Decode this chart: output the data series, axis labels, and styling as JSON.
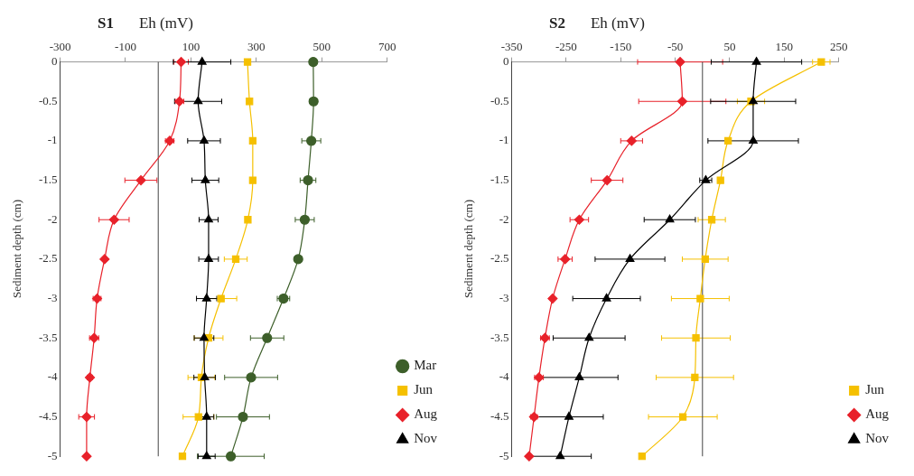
{
  "chart_data": [
    {
      "type": "line",
      "title": "S1",
      "xlabel": "Eh (mV)",
      "ylabel": "Sediment depth (cm)",
      "xlim": [
        -300,
        700
      ],
      "xticks": [
        -300,
        -100,
        100,
        300,
        500,
        700
      ],
      "ylim": [
        -5,
        0
      ],
      "yticks": [
        0,
        -0.5,
        -1,
        -1.5,
        -2,
        -2.5,
        -3,
        -3.5,
        -4,
        -4.5,
        -5
      ],
      "grid": false,
      "legend": "bottom right",
      "ref_lines": [
        {
          "axis": "x",
          "value": 0,
          "color": "#444444"
        }
      ],
      "series": [
        {
          "name": "Mar",
          "color": "#3d5f2a",
          "marker": "circle",
          "x": [
            474,
            475,
            468,
            458,
            448,
            428,
            383,
            333,
            284,
            259,
            222
          ],
          "values": [
            0,
            -0.5,
            -1,
            -1.5,
            -2,
            -2.5,
            -3,
            -3.5,
            -4,
            -4.5,
            -5
          ],
          "xerrors": [
            null,
            12,
            29,
            24,
            29,
            null,
            19,
            51,
            81,
            81,
            102
          ]
        },
        {
          "name": "Jun",
          "color": "#f5c000",
          "marker": "square",
          "x": [
            273,
            279,
            289,
            289,
            274,
            237,
            192,
            154,
            132,
            123,
            74
          ],
          "values": [
            0,
            -0.5,
            -1,
            -1.5,
            -2,
            -2.5,
            -3,
            -3.5,
            -4,
            -4.5,
            -5
          ],
          "xerrors": [
            null,
            null,
            null,
            null,
            null,
            35,
            48,
            44,
            41,
            47,
            null
          ]
        },
        {
          "name": "Aug",
          "color": "#e8212a",
          "marker": "diamond",
          "x": [
            70,
            65,
            35,
            -53,
            -135,
            -164,
            -187,
            -196,
            -209,
            -219,
            -219
          ],
          "values": [
            0,
            -0.5,
            -1,
            -1.5,
            -2,
            -2.5,
            -3,
            -3.5,
            -4,
            -4.5,
            -5
          ],
          "xerrors": [
            22,
            13,
            13,
            49,
            46,
            null,
            12,
            14,
            8,
            24,
            null
          ]
        },
        {
          "name": "Nov",
          "color": "#000000",
          "marker": "triangle",
          "x": [
            134,
            122,
            140,
            144,
            154,
            154,
            148,
            140,
            142,
            148,
            148
          ],
          "values": [
            0,
            -0.5,
            -1,
            -1.5,
            -2,
            -2.5,
            -3,
            -3.5,
            -4,
            -4.5,
            -5
          ],
          "xerrors": [
            88,
            72,
            50,
            41,
            29,
            30,
            31,
            30,
            33,
            22,
            26
          ]
        }
      ]
    },
    {
      "type": "line",
      "title": "S2",
      "xlabel": "Eh (mV)",
      "ylabel": "Sediment depth (cm)",
      "xlim": [
        -350,
        250
      ],
      "xticks": [
        -350,
        -250,
        -150,
        -50,
        50,
        150,
        250
      ],
      "ylim": [
        -5,
        0
      ],
      "yticks": [
        0,
        -0.5,
        -1,
        -1.5,
        -2,
        -2.5,
        -3,
        -3.5,
        -4,
        -4.5,
        -5
      ],
      "grid": false,
      "legend": "bottom right",
      "ref_lines": [
        {
          "axis": "x",
          "value": 0,
          "color": "#444444"
        }
      ],
      "series": [
        {
          "name": "Jun",
          "color": "#f5c000",
          "marker": "square",
          "x": [
            218,
            89,
            47,
            33,
            17,
            5,
            -4,
            -12,
            -14,
            -36,
            -111
          ],
          "values": [
            0,
            -0.5,
            -1,
            -1.5,
            -2,
            -2.5,
            -3,
            -3.5,
            -4,
            -4.5,
            -5
          ],
          "xerrors": [
            16,
            25,
            null,
            null,
            25,
            42,
            53,
            63,
            71,
            63,
            null
          ]
        },
        {
          "name": "Aug",
          "color": "#e8212a",
          "marker": "diamond",
          "x": [
            -41,
            -37,
            -130,
            -175,
            -226,
            -252,
            -275,
            -289,
            -300,
            -309,
            -318
          ],
          "values": [
            0,
            -0.5,
            -1,
            -1.5,
            -2,
            -2.5,
            -3,
            -3.5,
            -4,
            -4.5,
            -5
          ],
          "xerrors": [
            78,
            80,
            20,
            29,
            17,
            13,
            null,
            8,
            8,
            6,
            null
          ]
        },
        {
          "name": "Nov",
          "color": "#000000",
          "marker": "triangle",
          "x": [
            99,
            93,
            93,
            6,
            -60,
            -133,
            -176,
            -208,
            -226,
            -245,
            -261
          ],
          "values": [
            0,
            -0.5,
            -1,
            -1.5,
            -2,
            -2.5,
            -3,
            -3.5,
            -4,
            -4.5,
            -5
          ],
          "xerrors": [
            83,
            78,
            83,
            11,
            47,
            64,
            62,
            66,
            71,
            63,
            57
          ]
        }
      ]
    }
  ]
}
